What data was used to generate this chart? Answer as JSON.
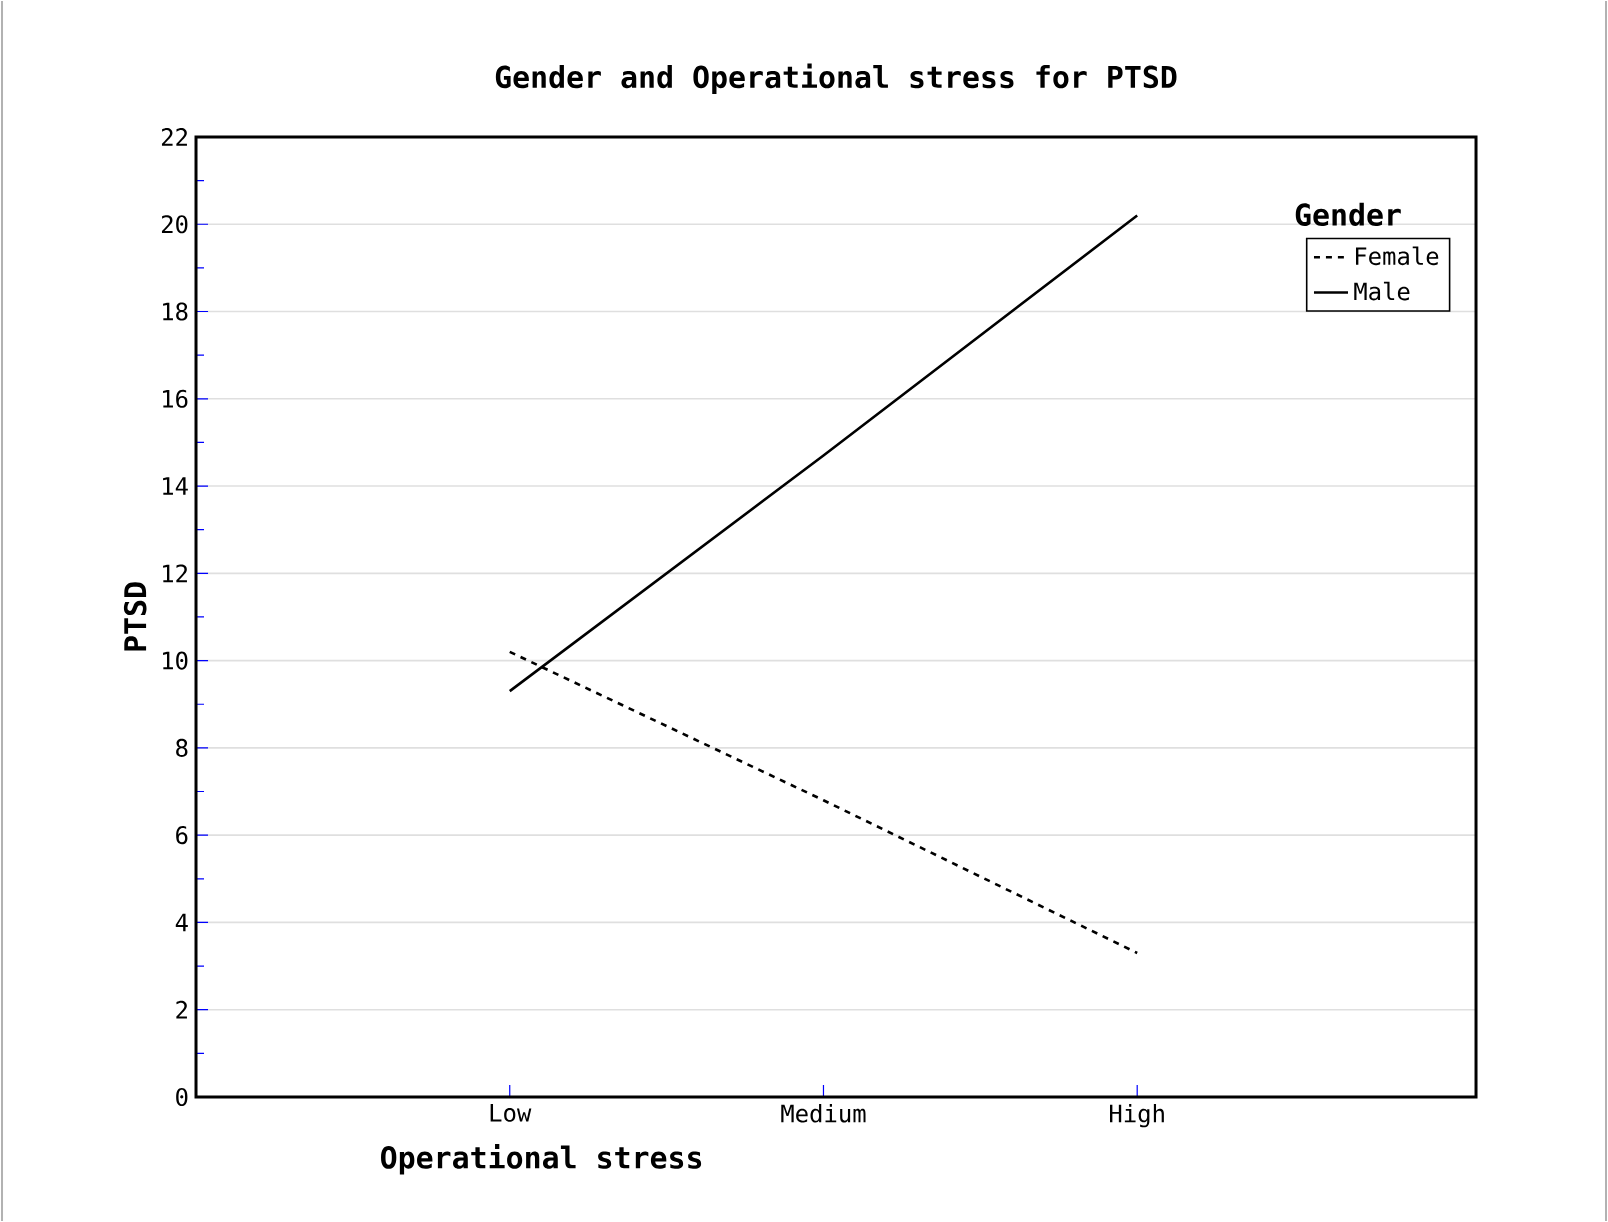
{
  "chart_data": {
    "type": "line",
    "title": "Gender and Operational stress for PTSD",
    "xlabel": "Operational stress",
    "ylabel": "PTSD",
    "legend_title": "Gender",
    "categories": [
      "Low",
      "Medium",
      "High"
    ],
    "series": [
      {
        "name": "Female",
        "color": "#000000",
        "line_style": "dashed",
        "values": [
          10.2,
          6.8,
          3.3
        ]
      },
      {
        "name": "Male",
        "color": "#000000",
        "line_style": "solid",
        "values": [
          9.3,
          14.7,
          20.2
        ]
      }
    ],
    "ylim": [
      0,
      22
    ],
    "yticks": [
      0,
      2,
      4,
      6,
      8,
      10,
      12,
      14,
      16,
      18,
      20,
      22
    ],
    "grid": "y",
    "legend": "top right",
    "marker": "none"
  }
}
